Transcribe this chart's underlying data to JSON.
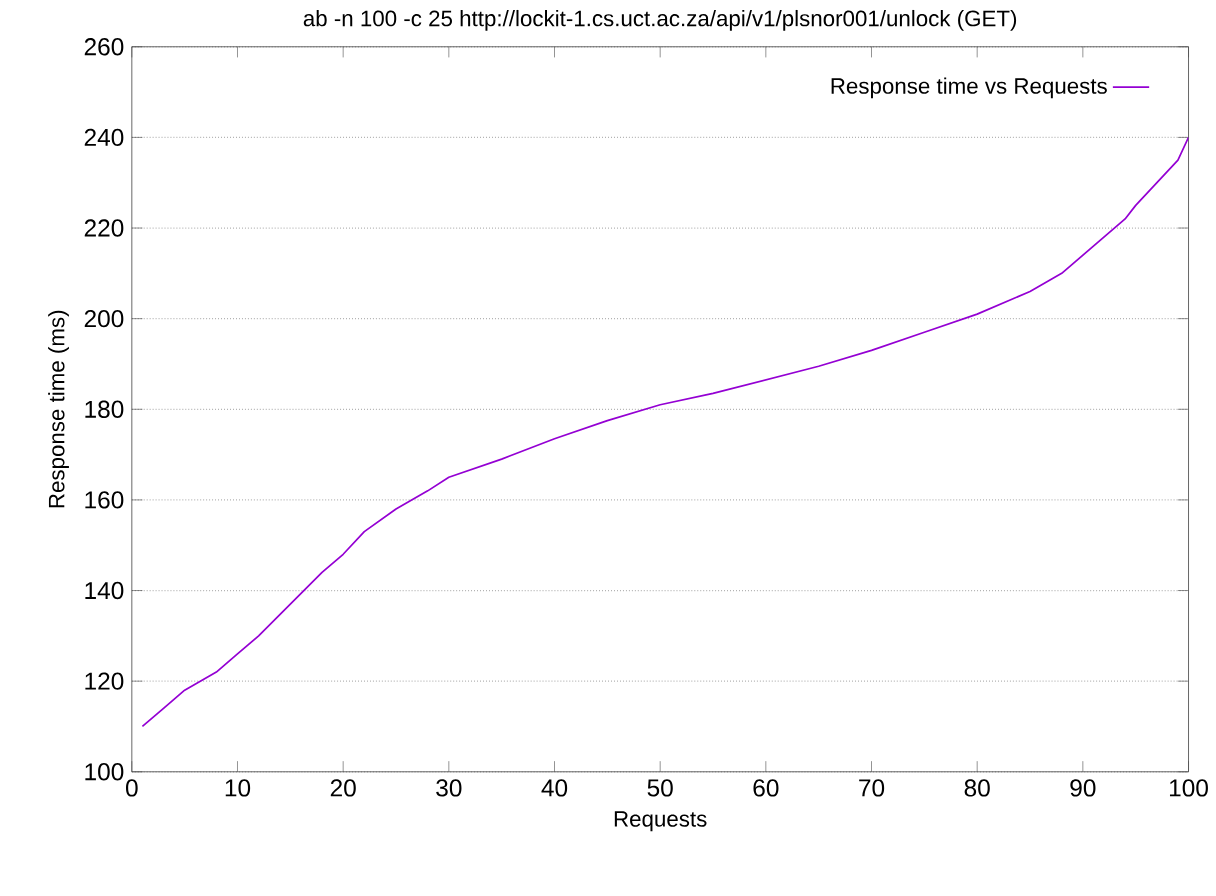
{
  "chart_data": {
    "type": "line",
    "title": "ab -n 100 -c 25 http://lockit-1.cs.uct.ac.za/api/v1/plsnor001/unlock (GET)",
    "xlabel": "Requests",
    "ylabel": "Response time (ms)",
    "x": [
      1,
      3,
      5,
      8,
      10,
      12,
      15,
      18,
      20,
      22,
      25,
      28,
      30,
      35,
      40,
      45,
      50,
      55,
      60,
      65,
      70,
      75,
      80,
      85,
      88,
      90,
      92,
      94,
      95,
      97,
      99,
      100
    ],
    "series": [
      {
        "name": "Response time vs Requests",
        "color": "#9400d3",
        "values": [
          110,
          114,
          118,
          122,
          126,
          130,
          137,
          144,
          148,
          153,
          158,
          162,
          165,
          169,
          173.5,
          177.5,
          181,
          183.5,
          186.5,
          189.5,
          193,
          197,
          201,
          206,
          210,
          214,
          218,
          222,
          225,
          230,
          235,
          240
        ]
      }
    ],
    "xlim": [
      0,
      100
    ],
    "ylim": [
      100,
      260
    ],
    "xticks": [
      0,
      10,
      20,
      30,
      40,
      50,
      60,
      70,
      80,
      90,
      100
    ],
    "yticks": [
      100,
      120,
      140,
      160,
      180,
      200,
      220,
      240,
      260
    ],
    "grid": "y",
    "legend": "top right",
    "marker": "none",
    "line_style": "solid"
  }
}
